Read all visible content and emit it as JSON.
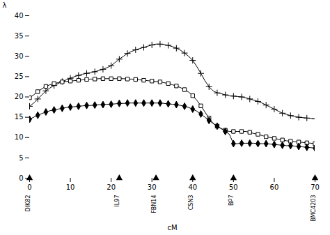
{
  "chart_data": {
    "type": "line",
    "xlabel": "cM",
    "ylabel": "λ",
    "xlim": [
      0,
      70
    ],
    "ylim": [
      0,
      40
    ],
    "xticks": [
      0,
      10,
      20,
      30,
      40,
      50,
      60,
      70
    ],
    "yticks": [
      0,
      5,
      10,
      15,
      20,
      25,
      30,
      35,
      40
    ],
    "grid": false,
    "x": [
      0,
      1,
      2,
      3,
      4,
      5,
      6,
      7,
      8,
      9,
      10,
      11,
      12,
      13,
      14,
      15,
      16,
      17,
      18,
      19,
      20,
      21,
      22,
      23,
      24,
      25,
      26,
      27,
      28,
      29,
      30,
      31,
      32,
      33,
      34,
      35,
      36,
      37,
      38,
      39,
      40,
      41,
      42,
      43,
      44,
      45,
      46,
      47,
      48,
      49,
      50,
      51,
      52,
      53,
      54,
      55,
      56,
      57,
      58,
      59,
      60,
      61,
      62,
      63,
      64,
      65,
      66,
      67,
      68,
      69,
      70
    ],
    "series": [
      {
        "color": "#000000",
        "marker": "plus",
        "values": [
          17.7,
          18.5,
          19.5,
          20.5,
          21.5,
          22.2,
          22.8,
          23.3,
          23.8,
          24.2,
          24.6,
          25.0,
          25.3,
          25.6,
          25.8,
          26.0,
          26.2,
          26.5,
          26.8,
          27.2,
          27.7,
          28.5,
          29.3,
          30.0,
          30.7,
          31.2,
          31.6,
          31.9,
          32.2,
          32.5,
          32.8,
          33.0,
          33.0,
          32.9,
          32.7,
          32.4,
          32.0,
          31.5,
          30.8,
          30.0,
          29.0,
          27.5,
          25.8,
          24.0,
          22.5,
          21.5,
          21.0,
          20.8,
          20.5,
          20.3,
          20.2,
          20.1,
          20.0,
          19.8,
          19.5,
          19.2,
          18.9,
          18.5,
          18.0,
          17.5,
          17.0,
          16.5,
          16.0,
          15.7,
          15.4,
          15.2,
          15.0,
          14.9,
          14.8,
          14.7,
          14.6
        ]
      },
      {
        "color": "#000000",
        "marker": "square",
        "values": [
          19.8,
          20.5,
          21.3,
          22.0,
          22.6,
          23.0,
          23.3,
          23.5,
          23.7,
          23.8,
          23.9,
          24.0,
          24.1,
          24.2,
          24.3,
          24.4,
          24.4,
          24.5,
          24.5,
          24.5,
          24.5,
          24.5,
          24.5,
          24.5,
          24.4,
          24.4,
          24.3,
          24.2,
          24.1,
          24.0,
          23.9,
          23.8,
          23.7,
          23.5,
          23.3,
          23.0,
          22.7,
          22.3,
          21.8,
          21.2,
          20.3,
          19.2,
          17.8,
          16.3,
          14.8,
          13.5,
          12.8,
          12.2,
          11.8,
          11.5,
          11.5,
          11.5,
          11.5,
          11.5,
          11.3,
          11.0,
          10.8,
          10.5,
          10.2,
          10.0,
          9.8,
          9.6,
          9.4,
          9.2,
          9.1,
          9.0,
          8.9,
          8.8,
          8.7,
          8.6,
          8.5
        ]
      },
      {
        "color": "#000000",
        "marker": "diamond",
        "values": [
          14.5,
          15.0,
          15.5,
          15.9,
          16.3,
          16.6,
          16.8,
          17.0,
          17.2,
          17.4,
          17.5,
          17.6,
          17.7,
          17.8,
          17.9,
          17.9,
          18.0,
          18.1,
          18.1,
          18.2,
          18.2,
          18.3,
          18.4,
          18.4,
          18.5,
          18.5,
          18.5,
          18.5,
          18.5,
          18.5,
          18.5,
          18.5,
          18.5,
          18.4,
          18.3,
          18.2,
          18.1,
          17.9,
          17.7,
          17.4,
          17.0,
          16.5,
          15.8,
          15.0,
          14.2,
          13.5,
          12.8,
          12.2,
          11.5,
          10.8,
          8.5,
          8.5,
          8.6,
          8.6,
          8.6,
          8.6,
          8.5,
          8.5,
          8.5,
          8.4,
          8.3,
          8.2,
          8.1,
          8.0,
          8.0,
          7.9,
          7.8,
          7.7,
          7.6,
          7.5,
          7.4
        ]
      }
    ],
    "annotations": [
      {
        "x": 0,
        "text": "DIK82"
      },
      {
        "x": 22,
        "text": "IL97"
      },
      {
        "x": 31,
        "text": "FBN14"
      },
      {
        "x": 40,
        "text": "CSN3"
      },
      {
        "x": 50,
        "text": "BP7"
      },
      {
        "x": 70,
        "text": "BMC4203"
      }
    ]
  }
}
